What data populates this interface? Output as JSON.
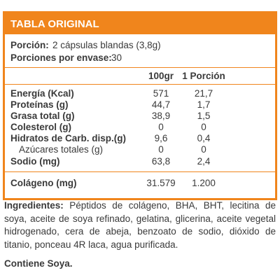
{
  "header": {
    "title": "TABLA ORIGINAL"
  },
  "serving": {
    "portion_label": "Porción:",
    "portion_value": "2 cápsulas blandas (3,8g)",
    "servings_label": "Porciones por envase:",
    "servings_value": "30"
  },
  "columns": {
    "per100": "100gr",
    "perPortion": "1 Porción"
  },
  "rows": [
    {
      "name": "Energía (Kcal)",
      "v100": "571",
      "vPortion": "21,7"
    },
    {
      "name": "Proteínas (g)",
      "v100": "44,7",
      "vPortion": "1,7"
    },
    {
      "name": "Grasa total (g)",
      "v100": "38,9",
      "vPortion": "1,5"
    },
    {
      "name": "Colesterol (g)",
      "v100": "0",
      "vPortion": "0"
    },
    {
      "name": "Hidratos de Carb. disp.(g)",
      "v100": "9,6",
      "vPortion": "0,4"
    },
    {
      "name": "Azúcares totales (g)",
      "v100": "0",
      "vPortion": "0"
    },
    {
      "name": "Sodio (mg)",
      "v100": "63,8",
      "vPortion": "2,4"
    }
  ],
  "collagen": {
    "name": "Colágeno (mg)",
    "v100": "31.579",
    "vPortion": "1.200"
  },
  "ingredients": {
    "label": "Ingredientes:",
    "text": "Péptidos de colágeno, BHA, BHT, lecitina de soya, aceite de soya refinado, gelatina, glicerina, aceite vegetal hidrogenado, cera de abeja, benzoato de sodio, dióxido de titanio, ponceau 4R laca, agua purificada."
  },
  "allergen": "Contiene Soya.",
  "colors": {
    "accent": "#f0851c",
    "text": "#3a3a3a"
  }
}
